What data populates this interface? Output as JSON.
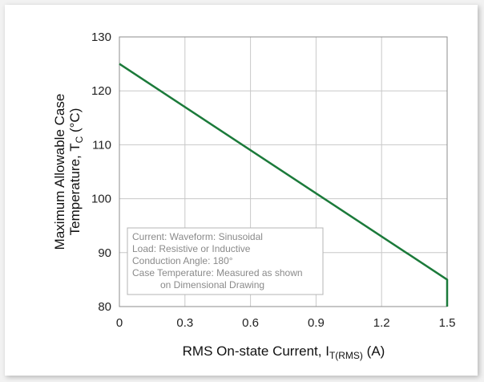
{
  "chart_data": {
    "type": "line",
    "xlabel_main": "RMS On-state Current, I",
    "xlabel_sub": "T(RMS)",
    "xlabel_unit": " (A)",
    "ylabel_line1": "Maximum Allowable Case",
    "ylabel_line2_main": "Temperature, T",
    "ylabel_line2_sub": "C",
    "ylabel_line2_unit": " (°C)",
    "xlim": [
      0,
      1.5
    ],
    "ylim": [
      80,
      130
    ],
    "xticks": [
      0,
      0.3,
      0.6,
      0.9,
      1.2,
      1.5
    ],
    "xtick_labels": [
      "0",
      "0.3",
      "0.6",
      "0.9",
      "1.2",
      "1.5"
    ],
    "yticks": [
      80,
      90,
      100,
      110,
      120,
      130
    ],
    "ytick_labels": [
      "80",
      "90",
      "100",
      "110",
      "120",
      "130"
    ],
    "grid": true,
    "series": [
      {
        "color": "#1b7a3a",
        "x": [
          0,
          1.5,
          1.5
        ],
        "y": [
          125,
          85,
          80
        ]
      }
    ],
    "annotation": [
      "Current: Waveform: Sinusoidal",
      "Load: Resistive or Inductive",
      "Conduction Angle: 180°",
      "Case Temperature: Measured as shown",
      "on Dimensional Drawing"
    ]
  }
}
